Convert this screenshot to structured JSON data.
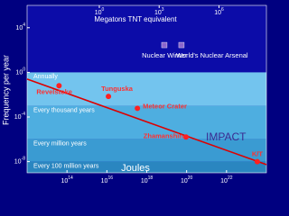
{
  "chart_data": {
    "type": "scatter",
    "log_x": true,
    "log_y": true,
    "x_axis_label": "Joules",
    "x2_axis_label": "Megatons TNT equivalent",
    "y_axis_label": "Frequency per year",
    "annotation": "IMPACT",
    "xlim": [
      1000000000000.0,
      1e+24
    ],
    "x2lim": [
      0.000239,
      239000000
    ],
    "ylim": [
      1e-09,
      1000000
    ],
    "xticks": [
      {
        "value": 100000000000000.0,
        "label": "10",
        "exponent": "14"
      },
      {
        "value": 1e+16,
        "label": "10",
        "exponent": "16"
      },
      {
        "value": 1e+18,
        "label": "10",
        "exponent": "18"
      },
      {
        "value": 1e+20,
        "label": "10",
        "exponent": "20"
      },
      {
        "value": 1e+22,
        "label": "10",
        "exponent": "22"
      }
    ],
    "x2ticks": [
      {
        "value": 1,
        "label": "10",
        "exponent": "0"
      },
      {
        "value": 1000,
        "label": "10",
        "exponent": "3"
      },
      {
        "value": 1000000,
        "label": "10",
        "exponent": "6"
      }
    ],
    "yticks": [
      {
        "value": 10000,
        "label": "10",
        "exponent": "4"
      },
      {
        "value": 1,
        "label": "10",
        "exponent": "0"
      },
      {
        "value": 0.0001,
        "label": "10",
        "exponent": "-4"
      },
      {
        "value": 1e-08,
        "label": "10",
        "exponent": "-8"
      }
    ],
    "plot_color": "#0c0ca8",
    "levels": [
      {
        "label": "Annually",
        "value": 1,
        "color": "#73c4ee"
      },
      {
        "label": "Every thousand years",
        "value": 0.001,
        "color": "#4eaee0"
      },
      {
        "label": "Every million years",
        "value": 1e-06,
        "color": "#3a9bd2"
      },
      {
        "label": "Every 100 million years",
        "value": 1e-08,
        "color": "#2a86c0"
      }
    ],
    "series": [
      {
        "color": "#ff2020",
        "names": [
          "Revelstoke",
          "Tunguska",
          "Meteor Crater",
          "Zhamanshin",
          "K/T"
        ],
        "x": [
          40000000000000.0,
          1.2e+16,
          3.4e+17,
          9.3e+19,
          3.5e+23
        ],
        "values": [
          0.063,
          0.007,
          0.0006,
          1.6e-06,
          1e-08
        ]
      },
      {
        "color": "#8a66cc",
        "names": [
          "Nuclear Winter",
          "World's Nuclear Arsenal"
        ],
        "x": [
          7.6e+18,
          5.5e+19
        ],
        "values": [
          280,
          280
        ]
      }
    ],
    "trend": {
      "color": "#dd0000",
      "x": [
        1000000000000.0,
        1e+24
      ],
      "values": [
        0.25,
        5.4e-09
      ]
    }
  }
}
